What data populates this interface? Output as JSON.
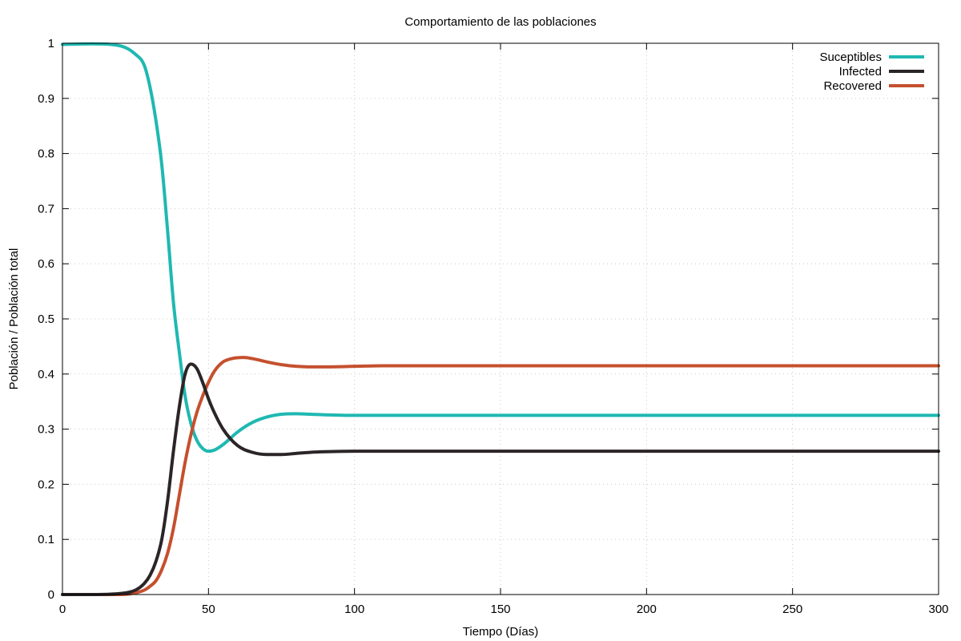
{
  "chart_data": {
    "type": "line",
    "title": "Comportamiento de las poblaciones",
    "xlabel": "Tiempo (Días)",
    "ylabel": "Población / Población total",
    "xlim": [
      0,
      300
    ],
    "ylim": [
      0,
      1
    ],
    "xticks": [
      0,
      50,
      100,
      150,
      200,
      250,
      300
    ],
    "yticks": [
      0,
      0.1,
      0.2,
      0.3,
      0.4,
      0.5,
      0.6,
      0.7,
      0.8,
      0.9,
      1
    ],
    "xtick_labels": [
      "0",
      "50",
      "100",
      "150",
      "200",
      "250",
      "300"
    ],
    "ytick_labels": [
      "0",
      "0.1",
      "0.2",
      "0.3",
      "0.4",
      "0.5",
      "0.6",
      "0.7",
      "0.8",
      "0.9",
      "1"
    ],
    "grid": true,
    "legend_position": "top-right",
    "series": [
      {
        "name": "Suceptibles",
        "color": "#1fb8b2",
        "x": [
          0,
          10,
          20,
          25,
          28,
          30,
          32,
          34,
          36,
          38,
          40,
          42,
          44,
          46,
          48,
          50,
          52,
          55,
          60,
          65,
          70,
          75,
          80,
          85,
          90,
          100,
          110,
          120,
          150,
          200,
          250,
          300
        ],
        "y": [
          0.998,
          0.999,
          0.995,
          0.98,
          0.96,
          0.92,
          0.86,
          0.78,
          0.66,
          0.53,
          0.44,
          0.36,
          0.31,
          0.28,
          0.265,
          0.26,
          0.262,
          0.272,
          0.295,
          0.312,
          0.322,
          0.327,
          0.328,
          0.327,
          0.326,
          0.325,
          0.325,
          0.325,
          0.325,
          0.325,
          0.325,
          0.325
        ]
      },
      {
        "name": "Infected",
        "color": "#2b2527",
        "x": [
          0,
          10,
          20,
          25,
          28,
          30,
          32,
          34,
          36,
          38,
          40,
          42,
          44,
          46,
          48,
          50,
          52,
          55,
          60,
          65,
          70,
          75,
          80,
          85,
          90,
          100,
          110,
          120,
          150,
          200,
          250,
          300
        ],
        "y": [
          0,
          0,
          0.002,
          0.008,
          0.02,
          0.035,
          0.06,
          0.1,
          0.17,
          0.26,
          0.34,
          0.4,
          0.418,
          0.41,
          0.385,
          0.355,
          0.33,
          0.3,
          0.27,
          0.258,
          0.254,
          0.254,
          0.256,
          0.258,
          0.259,
          0.26,
          0.26,
          0.26,
          0.26,
          0.26,
          0.26,
          0.26
        ]
      },
      {
        "name": "Recovered",
        "color": "#c5502e",
        "x": [
          0,
          10,
          20,
          25,
          28,
          30,
          32,
          34,
          36,
          38,
          40,
          42,
          44,
          46,
          48,
          50,
          52,
          55,
          58,
          62,
          65,
          70,
          75,
          80,
          85,
          90,
          100,
          110,
          120,
          150,
          200,
          250,
          300
        ],
        "y": [
          0,
          0,
          0,
          0.003,
          0.008,
          0.015,
          0.025,
          0.045,
          0.075,
          0.12,
          0.18,
          0.24,
          0.29,
          0.33,
          0.36,
          0.385,
          0.405,
          0.422,
          0.428,
          0.43,
          0.428,
          0.422,
          0.417,
          0.414,
          0.413,
          0.413,
          0.414,
          0.415,
          0.415,
          0.415,
          0.415,
          0.415,
          0.415
        ]
      }
    ]
  }
}
